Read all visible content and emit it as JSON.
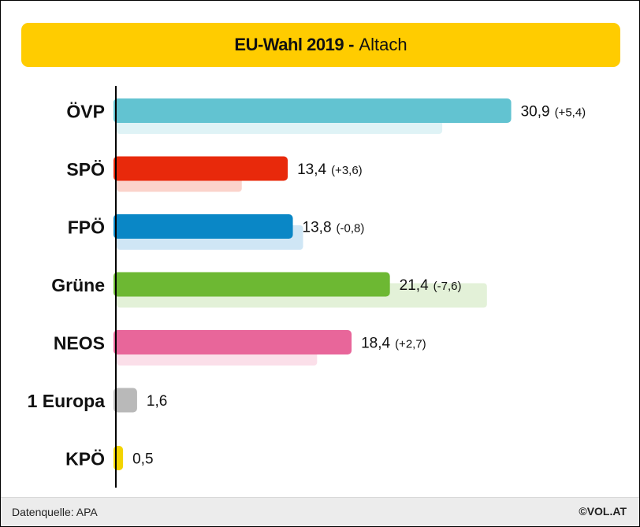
{
  "title": {
    "main": "EU-Wahl 2019",
    "separator": "-",
    "subtitle": "Altach"
  },
  "footer": {
    "source": "Datenquelle: APA",
    "copyright": "©VOL.AT"
  },
  "chart_data": {
    "type": "bar",
    "orientation": "horizontal",
    "title": "EU-Wahl 2019 - Altach",
    "categories": [
      "ÖVP",
      "SPÖ",
      "FPÖ",
      "Grüne",
      "NEOS",
      "1 Europa",
      "KPÖ"
    ],
    "series": [
      {
        "values": [
          30.9,
          13.4,
          13.8,
          21.4,
          18.4,
          1.6,
          0.5
        ],
        "labels": [
          "30,9",
          "13,4",
          "13,8",
          "21,4",
          "18,4",
          "1,6",
          "0,5"
        ]
      },
      {
        "values": [
          25.5,
          9.8,
          14.6,
          29.0,
          15.7,
          null,
          null
        ]
      }
    ],
    "change_labels": [
      "(+5,4)",
      "(+3,6)",
      "(-0,8)",
      "(-7,6)",
      "(+2,7)",
      "",
      ""
    ],
    "colors": [
      "#62c3d1",
      "#e8290b",
      "#0a87c6",
      "#6db833",
      "#e8669a",
      "#b9b9b9",
      "#f3d400"
    ],
    "previous_colors": [
      "#dff3f6",
      "#fbd3cb",
      "#cfe6f5",
      "#e3f1d8",
      "#fbdfe9",
      "#eeeeee",
      "#fdf7cc"
    ],
    "xlim": [
      0,
      32
    ]
  }
}
